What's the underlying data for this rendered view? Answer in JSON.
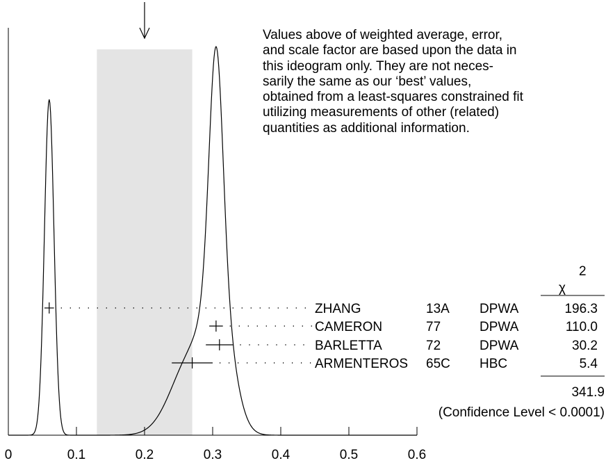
{
  "chart_data": {
    "type": "ideogram",
    "xlim": [
      0,
      0.6
    ],
    "x_ticks": [
      "0",
      "0.1",
      "0.2",
      "0.3",
      "0.4",
      "0.5",
      "0.6"
    ],
    "x_tick_values": [
      0,
      0.1,
      0.2,
      0.3,
      0.4,
      0.5,
      0.6
    ],
    "weighted_average": 0.2,
    "shaded_band": [
      0.13,
      0.27
    ],
    "chi2_symbol": "χ",
    "chi2_exponent": "2",
    "measurements": [
      {
        "author": "ZHANG",
        "year": "13A",
        "tech": "DPWA",
        "chi2": "196.3",
        "value": 0.06,
        "err": 0.007
      },
      {
        "author": "CAMERON",
        "year": "77",
        "tech": "DPWA",
        "chi2": "110.0",
        "value": 0.305,
        "err": 0.01
      },
      {
        "author": "BARLETTA",
        "year": "72",
        "tech": "DPWA",
        "chi2": "30.2",
        "value": 0.31,
        "err": 0.02
      },
      {
        "author": "ARMENTEROS",
        "year": "65C",
        "tech": "HBC",
        "chi2": "5.4",
        "value": 0.27,
        "err": 0.03
      }
    ],
    "chi2_total": "341.9",
    "confidence_text": "(Confidence Level < 0.0001)",
    "note_lines": [
      "Values above of weighted average, error,",
      "and scale factor are based upon the data in",
      "this ideogram only.  They are not neces-",
      "sarily the same as our ‘best’ values,",
      "obtained from a least-squares constrained fit",
      "utilizing measurements of other (related)",
      "quantities as additional information."
    ]
  }
}
